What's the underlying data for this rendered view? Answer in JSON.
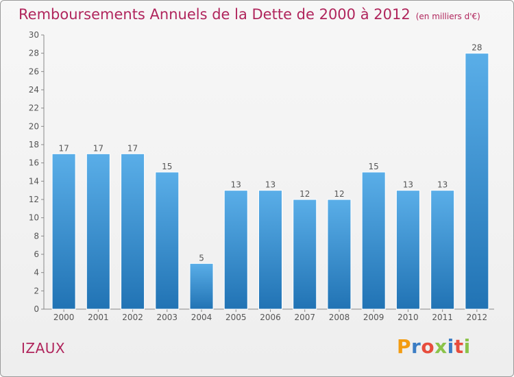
{
  "chart_data": {
    "type": "bar",
    "title": "Remboursements Annuels de la Dette de 2000 à 2012",
    "subtitle": "(en milliers d'€)",
    "categories": [
      "2000",
      "2001",
      "2002",
      "2003",
      "2004",
      "2005",
      "2006",
      "2007",
      "2008",
      "2009",
      "2010",
      "2011",
      "2012"
    ],
    "values": [
      17,
      17,
      17,
      15,
      5,
      13,
      13,
      12,
      12,
      15,
      13,
      13,
      28
    ],
    "ylim": [
      0,
      30
    ],
    "yticks": [
      0,
      2,
      4,
      6,
      8,
      10,
      12,
      14,
      16,
      18,
      20,
      22,
      24,
      26,
      28,
      30
    ],
    "xlabel": "",
    "ylabel": "",
    "grid": false
  },
  "commune": "IZAUX",
  "logo": {
    "text": "Proxiti",
    "letters": [
      "P",
      "r",
      "o",
      "x",
      "i",
      "t",
      "i"
    ],
    "colors": [
      "#f39c12",
      "#3b7dc4",
      "#e74c3c",
      "#8bc34a",
      "#3b7dc4",
      "#e74c3c",
      "#8bc34a"
    ]
  },
  "colors": {
    "bar_top": "#5aaee8",
    "bar_bottom": "#2173b4",
    "title": "#b0255c"
  }
}
